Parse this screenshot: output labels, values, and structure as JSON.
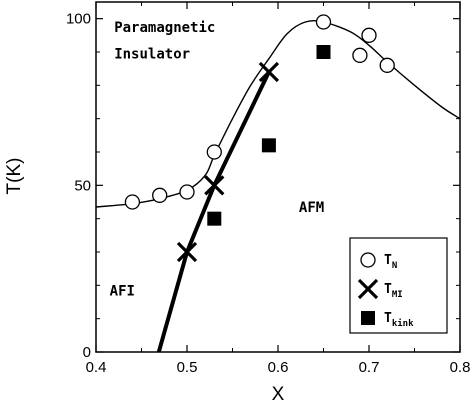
{
  "chart_data": {
    "type": "scatter",
    "xlabel": "X",
    "ylabel": "T(K)",
    "xlim": [
      0.4,
      0.8
    ],
    "ylim": [
      0,
      105
    ],
    "x_ticks": [
      "0.4",
      "0.5",
      "0.6",
      "0.7",
      "0.8"
    ],
    "y_ticks": [
      "0",
      "50",
      "100"
    ],
    "grid": false,
    "legend_position": "bottom-right",
    "colors": {
      "ink": "#000000",
      "background": "#ffffff"
    },
    "series": [
      {
        "name": "T",
        "name_sub": "N",
        "marker": "open-circle",
        "points": [
          {
            "x": 0.44,
            "y": 45
          },
          {
            "x": 0.47,
            "y": 47
          },
          {
            "x": 0.5,
            "y": 48
          },
          {
            "x": 0.53,
            "y": 60
          },
          {
            "x": 0.65,
            "y": 99
          },
          {
            "x": 0.69,
            "y": 89
          },
          {
            "x": 0.7,
            "y": 95
          },
          {
            "x": 0.72,
            "y": 86
          }
        ]
      },
      {
        "name": "T",
        "name_sub": "MI",
        "marker": "cross",
        "points": [
          {
            "x": 0.5,
            "y": 30
          },
          {
            "x": 0.53,
            "y": 50
          },
          {
            "x": 0.59,
            "y": 84
          }
        ]
      },
      {
        "name": "T",
        "name_sub": "kink",
        "marker": "filled-square",
        "points": [
          {
            "x": 0.53,
            "y": 40
          },
          {
            "x": 0.59,
            "y": 62
          },
          {
            "x": 0.65,
            "y": 90
          }
        ]
      }
    ],
    "curves": [
      {
        "kind": "thin",
        "points": [
          {
            "x": 0.4,
            "y": 43.5
          },
          {
            "x": 0.44,
            "y": 44.5
          },
          {
            "x": 0.47,
            "y": 46.0
          },
          {
            "x": 0.5,
            "y": 48.5
          },
          {
            "x": 0.52,
            "y": 53.0
          },
          {
            "x": 0.53,
            "y": 59.0
          },
          {
            "x": 0.55,
            "y": 70.0
          },
          {
            "x": 0.57,
            "y": 80.0
          },
          {
            "x": 0.59,
            "y": 88.0
          },
          {
            "x": 0.61,
            "y": 95.5
          },
          {
            "x": 0.63,
            "y": 99.0
          },
          {
            "x": 0.65,
            "y": 99.0
          },
          {
            "x": 0.68,
            "y": 96.0
          },
          {
            "x": 0.7,
            "y": 92.0
          },
          {
            "x": 0.72,
            "y": 87.0
          },
          {
            "x": 0.75,
            "y": 80.0
          },
          {
            "x": 0.78,
            "y": 73.5
          },
          {
            "x": 0.8,
            "y": 70.0
          }
        ]
      },
      {
        "kind": "thick",
        "points": [
          {
            "x": 0.469,
            "y": 0
          },
          {
            "x": 0.5,
            "y": 30
          },
          {
            "x": 0.53,
            "y": 50
          },
          {
            "x": 0.59,
            "y": 84
          }
        ]
      }
    ],
    "annotations": [
      {
        "text": "Paramagnetic",
        "x": 0.42,
        "y": 96
      },
      {
        "text": "Insulator",
        "x": 0.42,
        "y": 88
      },
      {
        "text": "AFM",
        "x": 0.623,
        "y": 42
      },
      {
        "text": "AFI",
        "x": 0.415,
        "y": 17
      }
    ]
  }
}
